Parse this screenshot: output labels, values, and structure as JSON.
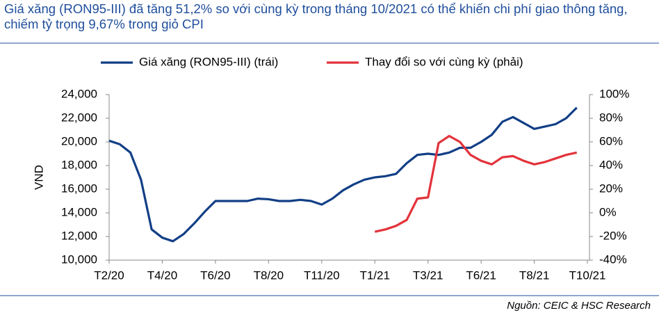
{
  "chart_data": {
    "type": "line",
    "title": "Giá xăng (RON95-III) đã tăng 51,2% so với cùng kỳ trong tháng 10/2021 có thể khiến chi phí giao thông tăng, chiếm tỷ trọng 9,67% trong giỏ CPI",
    "source": "Nguồn: CEIC & HSC Research",
    "ylabel": "VND",
    "categories": [
      "T2/20",
      null,
      null,
      null,
      null,
      "T4/20",
      null,
      null,
      null,
      null,
      "T6/20",
      null,
      null,
      null,
      null,
      "T8/20",
      null,
      null,
      null,
      null,
      "T11/20",
      null,
      null,
      null,
      null,
      "T1/21",
      null,
      null,
      null,
      null,
      "T3/21",
      null,
      null,
      null,
      null,
      "T6/21",
      null,
      null,
      null,
      null,
      "T8/21",
      null,
      null,
      null,
      null,
      "T10/21"
    ],
    "series": [
      {
        "name": "Giá xăng (RON95-III) (trái)",
        "color": "#123f86",
        "axis": "y",
        "values": [
          20100,
          19800,
          19100,
          16800,
          12600,
          11900,
          11600,
          12200,
          13100,
          14100,
          15000,
          15000,
          15000,
          15000,
          15200,
          15150,
          15000,
          15000,
          15100,
          15000,
          14700,
          15200,
          15900,
          16400,
          16800,
          17000,
          17100,
          17300,
          18200,
          18900,
          19000,
          18900,
          19100,
          19500,
          19500,
          20000,
          20600,
          21700,
          22100,
          21600,
          21100,
          21300,
          21500,
          22000,
          22900,
          null
        ]
      },
      {
        "name": "Thay đổi so với cùng kỳ (phải)",
        "color": "#e2333b",
        "axis": "y2",
        "values": [
          null,
          null,
          null,
          null,
          null,
          null,
          null,
          null,
          null,
          null,
          null,
          null,
          null,
          null,
          null,
          null,
          null,
          null,
          null,
          null,
          null,
          null,
          null,
          null,
          null,
          -16,
          -14,
          -11,
          -6,
          12,
          13,
          59,
          65,
          60,
          49,
          44,
          41,
          47,
          48,
          44,
          41,
          43,
          46,
          49,
          51,
          null
        ]
      }
    ],
    "ylim": [
      10000,
      24000
    ],
    "yticks": [
      {
        "value": 10000,
        "label": "10,000"
      },
      {
        "value": 12000,
        "label": "12,000"
      },
      {
        "value": 14000,
        "label": "14,000"
      },
      {
        "value": 16000,
        "label": "16,000"
      },
      {
        "value": 18000,
        "label": "18,000"
      },
      {
        "value": 20000,
        "label": "20,000"
      },
      {
        "value": 22000,
        "label": "22,000"
      },
      {
        "value": 24000,
        "label": "24,000"
      }
    ],
    "y2lim": [
      -40,
      100
    ],
    "y2ticks": [
      {
        "value": -40,
        "label": "-40%"
      },
      {
        "value": -20,
        "label": "-20%"
      },
      {
        "value": 0,
        "label": "0%"
      },
      {
        "value": 20,
        "label": "20%"
      },
      {
        "value": 40,
        "label": "40%"
      },
      {
        "value": 60,
        "label": "60%"
      },
      {
        "value": 80,
        "label": "80%"
      },
      {
        "value": 100,
        "label": "100%"
      }
    ],
    "grid": false
  }
}
